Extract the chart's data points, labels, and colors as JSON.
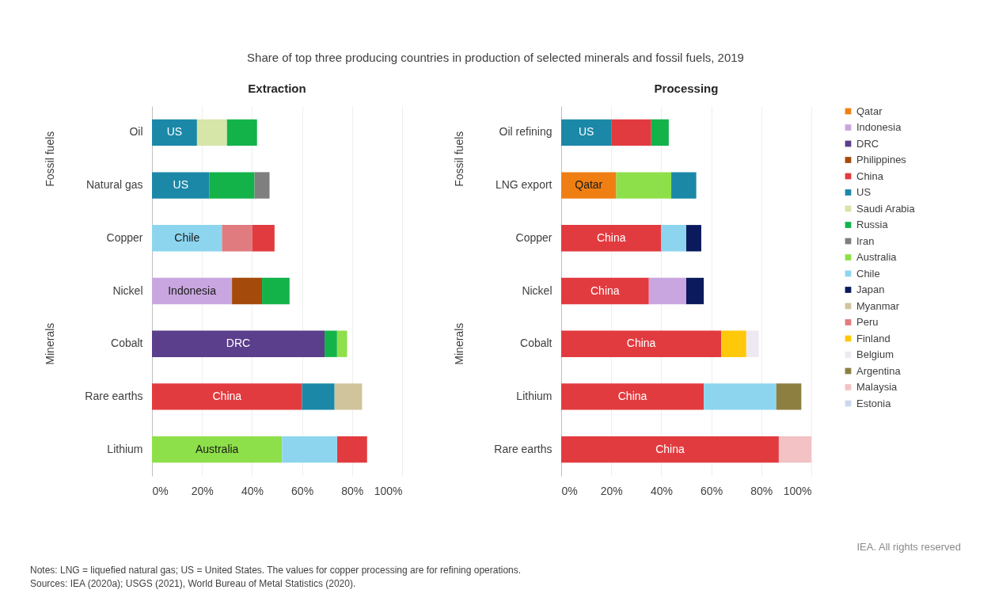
{
  "chart_data": [
    {
      "type": "bar",
      "orientation": "horizontal",
      "title": "Extraction",
      "categories": [
        "Oil",
        "Natural gas",
        "Copper",
        "Nickel",
        "Cobalt",
        "Rare earths",
        "Lithium"
      ],
      "xlim": [
        0,
        100
      ],
      "xticks": [
        {
          "value": 0,
          "label": "0%"
        },
        {
          "value": 20,
          "label": "20%"
        },
        {
          "value": 40,
          "label": "40%"
        },
        {
          "value": 60,
          "label": "60%"
        },
        {
          "value": 80,
          "label": "80%"
        },
        {
          "value": 100,
          "label": "100%"
        }
      ],
      "grid": "x",
      "annotations": [
        "Fossil fuels",
        "Minerals",
        "Share of top three producing countries in production of selected minerals and fossil fuels, 2019",
        "IEA. All rights reserved",
        "Notes: LNG = liquefied natural gas; US = United States. The values for copper processing are for refining operations.",
        "Sources: IEA (2020a); USGS (2021), World Bureau of Metal Statistics (2020)."
      ],
      "series": [
        {
          "color": "#c9a6e0",
          "values": [
            null,
            null,
            null,
            32,
            null,
            null,
            null
          ],
          "base": [
            null,
            null,
            null,
            0,
            null,
            null,
            null
          ],
          "value_labels": [
            null,
            null,
            null,
            "Indonesia",
            null,
            null,
            null
          ]
        },
        {
          "color": "#5b3e8c",
          "values": [
            null,
            null,
            null,
            null,
            69,
            null,
            null
          ],
          "base": [
            null,
            null,
            null,
            null,
            0,
            null,
            null
          ],
          "value_labels": [
            null,
            null,
            null,
            null,
            "DRC",
            null,
            null
          ]
        },
        {
          "color": "#a44a0a",
          "values": [
            null,
            null,
            null,
            12,
            null,
            null,
            null
          ],
          "base": [
            null,
            null,
            null,
            32,
            null,
            null,
            null
          ]
        },
        {
          "color": "#e23b3f",
          "values": [
            null,
            null,
            9,
            null,
            null,
            60,
            12
          ],
          "base": [
            null,
            null,
            40,
            null,
            null,
            0,
            74
          ],
          "value_labels": [
            null,
            null,
            null,
            null,
            null,
            "China",
            null
          ]
        },
        {
          "color": "#1b88a8",
          "values": [
            18,
            23,
            null,
            null,
            null,
            13,
            null
          ],
          "base": [
            0,
            0,
            null,
            null,
            null,
            60,
            null
          ],
          "value_labels": [
            "US",
            "US",
            null,
            null,
            null,
            null,
            null
          ]
        },
        {
          "color": "#d6e5a8",
          "values": [
            12,
            null,
            null,
            null,
            null,
            null,
            null
          ],
          "base": [
            18,
            null,
            null,
            null,
            null,
            null,
            null
          ]
        },
        {
          "color": "#13b34a",
          "values": [
            12,
            18,
            null,
            11,
            5,
            null,
            null
          ],
          "base": [
            30,
            23,
            null,
            44,
            69,
            null,
            null
          ]
        },
        {
          "color": "#7f7f7f",
          "values": [
            null,
            6,
            null,
            null,
            null,
            null,
            null
          ],
          "base": [
            null,
            41,
            null,
            null,
            null,
            null,
            null
          ]
        },
        {
          "color": "#8ee04a",
          "values": [
            null,
            null,
            null,
            null,
            4,
            null,
            52
          ],
          "base": [
            null,
            null,
            null,
            null,
            74,
            null,
            0
          ],
          "value_labels": [
            null,
            null,
            null,
            null,
            null,
            null,
            "Australia"
          ]
        },
        {
          "color": "#8dd5ef",
          "values": [
            null,
            null,
            28,
            null,
            null,
            null,
            22
          ],
          "base": [
            null,
            null,
            0,
            null,
            null,
            null,
            52
          ],
          "value_labels": [
            null,
            null,
            "Chile",
            null,
            null,
            null,
            null
          ]
        },
        {
          "color": "#d0c49c",
          "values": [
            null,
            null,
            null,
            null,
            null,
            11,
            null
          ],
          "base": [
            null,
            null,
            null,
            null,
            null,
            73,
            null
          ]
        },
        {
          "color": "#e07b7f",
          "values": [
            null,
            null,
            12,
            null,
            null,
            null,
            null
          ],
          "base": [
            null,
            null,
            28,
            null,
            null,
            null,
            null
          ]
        }
      ]
    },
    {
      "type": "bar",
      "orientation": "horizontal",
      "title": "Processing",
      "categories": [
        "Oil refining",
        "LNG export",
        "Copper",
        "Nickel",
        "Cobalt",
        "Lithium",
        "Rare earths"
      ],
      "xlim": [
        0,
        100
      ],
      "xticks": [
        {
          "value": 0,
          "label": "0%"
        },
        {
          "value": 20,
          "label": "20%"
        },
        {
          "value": 40,
          "label": "40%"
        },
        {
          "value": 60,
          "label": "60%"
        },
        {
          "value": 80,
          "label": "80%"
        },
        {
          "value": 100,
          "label": "100%"
        }
      ],
      "grid": "x",
      "legend": "right",
      "annotations": [
        "Fossil fuels",
        "Minerals"
      ],
      "series": [
        {
          "name": "Qatar",
          "color": "#f07f13",
          "values": [
            null,
            22,
            null,
            null,
            null,
            null,
            null
          ],
          "base": [
            null,
            0,
            null,
            null,
            null,
            null,
            null
          ],
          "value_labels": [
            null,
            "Qatar",
            null,
            null,
            null,
            null,
            null
          ]
        },
        {
          "name": "Indonesia",
          "color": "#c9a6e0",
          "values": [
            null,
            null,
            null,
            15,
            null,
            null,
            null
          ],
          "base": [
            null,
            null,
            null,
            35,
            null,
            null,
            null
          ]
        },
        {
          "name": "DRC",
          "color": "#5b3e8c",
          "values": [
            null,
            null,
            null,
            null,
            null,
            null,
            null
          ]
        },
        {
          "name": "Philippines",
          "color": "#a44a0a",
          "values": [
            null,
            null,
            null,
            null,
            null,
            null,
            null
          ]
        },
        {
          "name": "China",
          "color": "#e23b3f",
          "values": [
            16,
            null,
            40,
            35,
            64,
            57,
            87
          ],
          "base": [
            20,
            null,
            0,
            0,
            0,
            0,
            0
          ],
          "value_labels": [
            null,
            null,
            "China",
            "China",
            "China",
            "China",
            "China"
          ]
        },
        {
          "name": "US",
          "color": "#1b88a8",
          "values": [
            20,
            10,
            null,
            null,
            null,
            null,
            null
          ],
          "base": [
            0,
            44,
            null,
            null,
            null,
            null,
            null
          ],
          "value_labels": [
            "US",
            null,
            null,
            null,
            null,
            null,
            null
          ]
        },
        {
          "name": "Saudi Arabia",
          "color": "#d6e5a8",
          "values": [
            null,
            null,
            null,
            null,
            null,
            null,
            null
          ]
        },
        {
          "name": "Russia",
          "color": "#13b34a",
          "values": [
            7,
            null,
            null,
            null,
            null,
            null,
            null
          ],
          "base": [
            36,
            null,
            null,
            null,
            null,
            null,
            null
          ]
        },
        {
          "name": "Iran",
          "color": "#7f7f7f",
          "values": [
            null,
            null,
            null,
            null,
            null,
            null,
            null
          ]
        },
        {
          "name": "Australia",
          "color": "#8ee04a",
          "values": [
            null,
            22,
            null,
            null,
            null,
            null,
            null
          ],
          "base": [
            null,
            22,
            null,
            null,
            null,
            null,
            null
          ]
        },
        {
          "name": "Chile",
          "color": "#8dd5ef",
          "values": [
            null,
            null,
            10,
            null,
            null,
            29,
            null
          ],
          "base": [
            null,
            null,
            40,
            null,
            null,
            57,
            null
          ]
        },
        {
          "name": "Japan",
          "color": "#0a1a5c",
          "values": [
            null,
            null,
            6,
            7,
            null,
            null,
            null
          ],
          "base": [
            null,
            null,
            50,
            50,
            null,
            null,
            null
          ]
        },
        {
          "name": "Myanmar",
          "color": "#d0c49c",
          "values": [
            null,
            null,
            null,
            null,
            null,
            null,
            null
          ]
        },
        {
          "name": "Peru",
          "color": "#e07b7f",
          "values": [
            null,
            null,
            null,
            null,
            null,
            null,
            null
          ]
        },
        {
          "name": "Finland",
          "color": "#ffc80a",
          "values": [
            null,
            null,
            null,
            null,
            10,
            null,
            null
          ],
          "base": [
            null,
            null,
            null,
            null,
            64,
            null,
            null
          ]
        },
        {
          "name": "Belgium",
          "color": "#eee8f2",
          "values": [
            null,
            null,
            null,
            null,
            5,
            null,
            null
          ],
          "base": [
            null,
            null,
            null,
            null,
            74,
            null,
            null
          ]
        },
        {
          "name": "Argentina",
          "color": "#8c7f40",
          "values": [
            null,
            null,
            null,
            null,
            null,
            10,
            null
          ],
          "base": [
            null,
            null,
            null,
            null,
            null,
            86,
            null
          ]
        },
        {
          "name": "Malaysia",
          "color": "#f2c2c4",
          "values": [
            null,
            null,
            null,
            null,
            null,
            null,
            13
          ],
          "base": [
            null,
            null,
            null,
            null,
            null,
            null,
            87
          ]
        },
        {
          "name": "Estonia",
          "color": "#c8d8ee",
          "values": [
            null,
            null,
            null,
            null,
            null,
            null,
            null
          ]
        }
      ]
    }
  ]
}
